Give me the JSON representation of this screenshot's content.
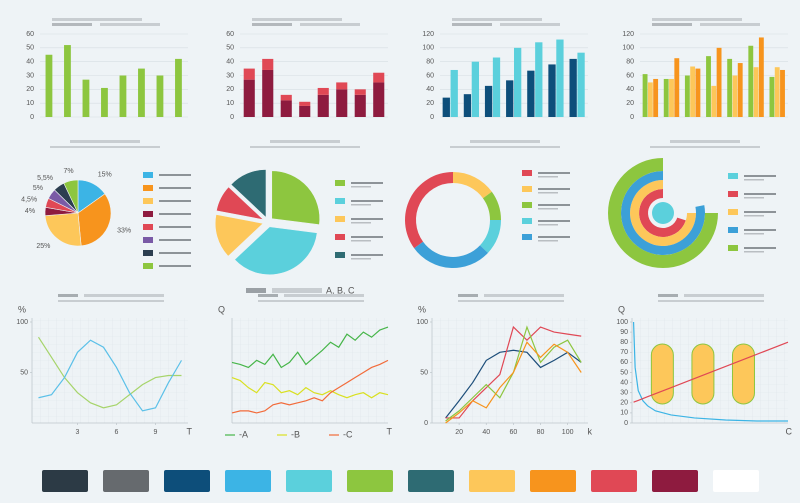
{
  "chart_data": [
    {
      "type": "bar",
      "categories": [
        null,
        null,
        null,
        null,
        null,
        null,
        null,
        null
      ],
      "series": [
        {
          "color": "#8dc63f",
          "values": [
            45,
            52,
            27,
            21,
            30,
            35,
            30,
            42
          ]
        }
      ],
      "ylim": [
        0,
        60
      ],
      "yticks": [
        0,
        10,
        20,
        30,
        40,
        50,
        60
      ],
      "grid": true
    },
    {
      "type": "bar",
      "stacked": true,
      "categories": [
        null,
        null,
        null,
        null,
        null,
        null,
        null,
        null
      ],
      "series": [
        {
          "color": "#8e1b3f",
          "values": [
            27,
            34,
            12,
            8,
            16,
            20,
            16,
            25
          ]
        },
        {
          "color": "#e04855",
          "values": [
            8,
            8,
            4,
            3,
            5,
            5,
            4,
            7
          ]
        }
      ],
      "ylim": [
        0,
        60
      ],
      "yticks": [
        0,
        10,
        20,
        30,
        40,
        50,
        60
      ],
      "grid": true
    },
    {
      "type": "bar",
      "categories": [
        null,
        null,
        null,
        null,
        null,
        null,
        null
      ],
      "series": [
        {
          "color": "#0d4e7a",
          "values": [
            28,
            33,
            45,
            53,
            67,
            76,
            84
          ]
        },
        {
          "color": "#5bd0dc",
          "values": [
            68,
            80,
            86,
            100,
            108,
            112,
            93
          ]
        }
      ],
      "ylim": [
        0,
        120
      ],
      "yticks": [
        0,
        20,
        40,
        60,
        80,
        100,
        120
      ],
      "grid": true
    },
    {
      "type": "bar",
      "categories": [
        null,
        null,
        null,
        null,
        null,
        null,
        null
      ],
      "series": [
        {
          "color": "#8dc63f",
          "values": [
            62,
            55,
            60,
            88,
            84,
            103,
            58
          ]
        },
        {
          "color": "#fdc75a",
          "values": [
            50,
            55,
            73,
            45,
            60,
            72,
            72
          ]
        },
        {
          "color": "#f7941d",
          "values": [
            55,
            85,
            70,
            100,
            78,
            115,
            68
          ]
        }
      ],
      "ylim": [
        0,
        120
      ],
      "yticks": [
        0,
        20,
        40,
        60,
        80,
        100,
        120
      ],
      "grid": true
    },
    {
      "type": "pie",
      "values": [
        15,
        33,
        25,
        4,
        4.5,
        5,
        5.5,
        7
      ],
      "value_labels": [
        "15%",
        "33%",
        "25%",
        "4%",
        "4,5%",
        "5%",
        "5,5%",
        "7%"
      ],
      "colors": [
        "#3cb4e5",
        "#f7941d",
        "#fdc75a",
        "#8e1b3f",
        "#e04855",
        "#7a5aa6",
        "#2c3e50",
        "#8dc63f"
      ]
    },
    {
      "type": "pie",
      "exploded": true,
      "caption": "A, B, C",
      "values": [
        27,
        36,
        15,
        9,
        13
      ],
      "colors": [
        "#8dc63f",
        "#5bd0dc",
        "#fdc75a",
        "#e04855",
        "#2e6b73"
      ]
    },
    {
      "type": "donut",
      "values": [
        35,
        15,
        10,
        12,
        28
      ],
      "colors": [
        "#e04855",
        "#fdc75a",
        "#8dc63f",
        "#5bd0dc",
        "#3ca0d8"
      ]
    },
    {
      "type": "radial",
      "rlim": [
        0,
        100
      ],
      "values": [
        100,
        70,
        75,
        78,
        75
      ],
      "colors": [
        "#5bd0dc",
        "#e04855",
        "#fdc75a",
        "#3ca0d8",
        "#8dc63f"
      ]
    },
    {
      "type": "line",
      "y_label": "%",
      "x_label": "T",
      "x": [
        0,
        1,
        2,
        3,
        4,
        5,
        6,
        7,
        8,
        9,
        10,
        11
      ],
      "xlim": [
        -0.5,
        11.5
      ],
      "ylim": [
        0,
        100
      ],
      "xticks": [
        3,
        6,
        9
      ],
      "yticks": [
        50,
        100
      ],
      "series": [
        {
          "color": "#a6d46a",
          "values": [
            85,
            65,
            45,
            30,
            20,
            15,
            18,
            28,
            38,
            45,
            47,
            47
          ]
        },
        {
          "color": "#5bc0e8",
          "values": [
            25,
            28,
            45,
            70,
            82,
            75,
            55,
            30,
            12,
            15,
            40,
            62
          ]
        }
      ]
    },
    {
      "type": "line",
      "y_label": "Q",
      "x_label": "T",
      "x": [
        0,
        1,
        2,
        3,
        4,
        5,
        6,
        7,
        8,
        9,
        10,
        11,
        12,
        13,
        14,
        15,
        16,
        17,
        18,
        19
      ],
      "xlim": [
        0,
        19
      ],
      "ylim": [
        0,
        100
      ],
      "series": [
        {
          "name": "-A",
          "color": "#46b549",
          "values": [
            60,
            58,
            55,
            62,
            58,
            68,
            55,
            60,
            70,
            58,
            65,
            72,
            80,
            75,
            88,
            82,
            90,
            85,
            92,
            95
          ]
        },
        {
          "name": "-B",
          "color": "#d9e021",
          "values": [
            45,
            42,
            35,
            30,
            40,
            38,
            30,
            32,
            28,
            35,
            30,
            28,
            32,
            28,
            25,
            28,
            30,
            25,
            30,
            28
          ]
        },
        {
          "name": "-C",
          "color": "#f26b3a",
          "values": [
            10,
            12,
            12,
            10,
            12,
            18,
            20,
            18,
            20,
            22,
            25,
            22,
            30,
            35,
            40,
            45,
            50,
            55,
            58,
            62
          ]
        }
      ]
    },
    {
      "type": "line",
      "y_label": "%",
      "x_label": "k",
      "x": [
        10,
        20,
        30,
        40,
        50,
        60,
        70,
        80,
        90,
        100,
        110
      ],
      "xlim": [
        0,
        115
      ],
      "ylim": [
        0,
        100
      ],
      "xticks": [
        20,
        40,
        60,
        80,
        100
      ],
      "yticks": [
        0,
        50,
        100
      ],
      "series": [
        {
          "color": "#1d4e7a",
          "values": [
            5,
            22,
            40,
            62,
            70,
            72,
            70,
            55,
            62,
            70,
            60
          ]
        },
        {
          "color": "#e04855",
          "values": [
            5,
            5,
            22,
            35,
            48,
            95,
            82,
            95,
            90,
            88,
            86
          ]
        },
        {
          "color": "#8dc63f",
          "values": [
            2,
            12,
            25,
            38,
            25,
            50,
            95,
            60,
            75,
            82,
            60
          ]
        },
        {
          "color": "#f7941d",
          "values": [
            0,
            10,
            22,
            15,
            35,
            50,
            80,
            65,
            78,
            70,
            50
          ]
        }
      ]
    },
    {
      "type": "line",
      "y_label": "Q",
      "x_label": "C",
      "x": [
        1,
        2,
        4,
        7,
        10,
        15,
        25,
        40,
        60,
        80,
        100
      ],
      "xlim": [
        0,
        100
      ],
      "ylim": [
        0,
        100
      ],
      "yticks": [
        0,
        10,
        20,
        30,
        40,
        50,
        60,
        70,
        80,
        90,
        100
      ],
      "series": [
        {
          "color": "#3cb4e5",
          "values": [
            100,
            55,
            32,
            22,
            17,
            12,
            8,
            5,
            3,
            2,
            2
          ]
        },
        {
          "color": "#e04855",
          "values": [
            20.6,
            21.2,
            22.4,
            24.2,
            26,
            29,
            35,
            44,
            56,
            68,
            80
          ]
        }
      ]
    }
  ],
  "palette": [
    "#2c3a45",
    "#666a6e",
    "#0d4e7a",
    "#3cb4e5",
    "#5bd0dc",
    "#8dc63f",
    "#2e6b73",
    "#fdc75a",
    "#f7941d",
    "#e04855",
    "#8e1b3f",
    "#ffffff"
  ]
}
